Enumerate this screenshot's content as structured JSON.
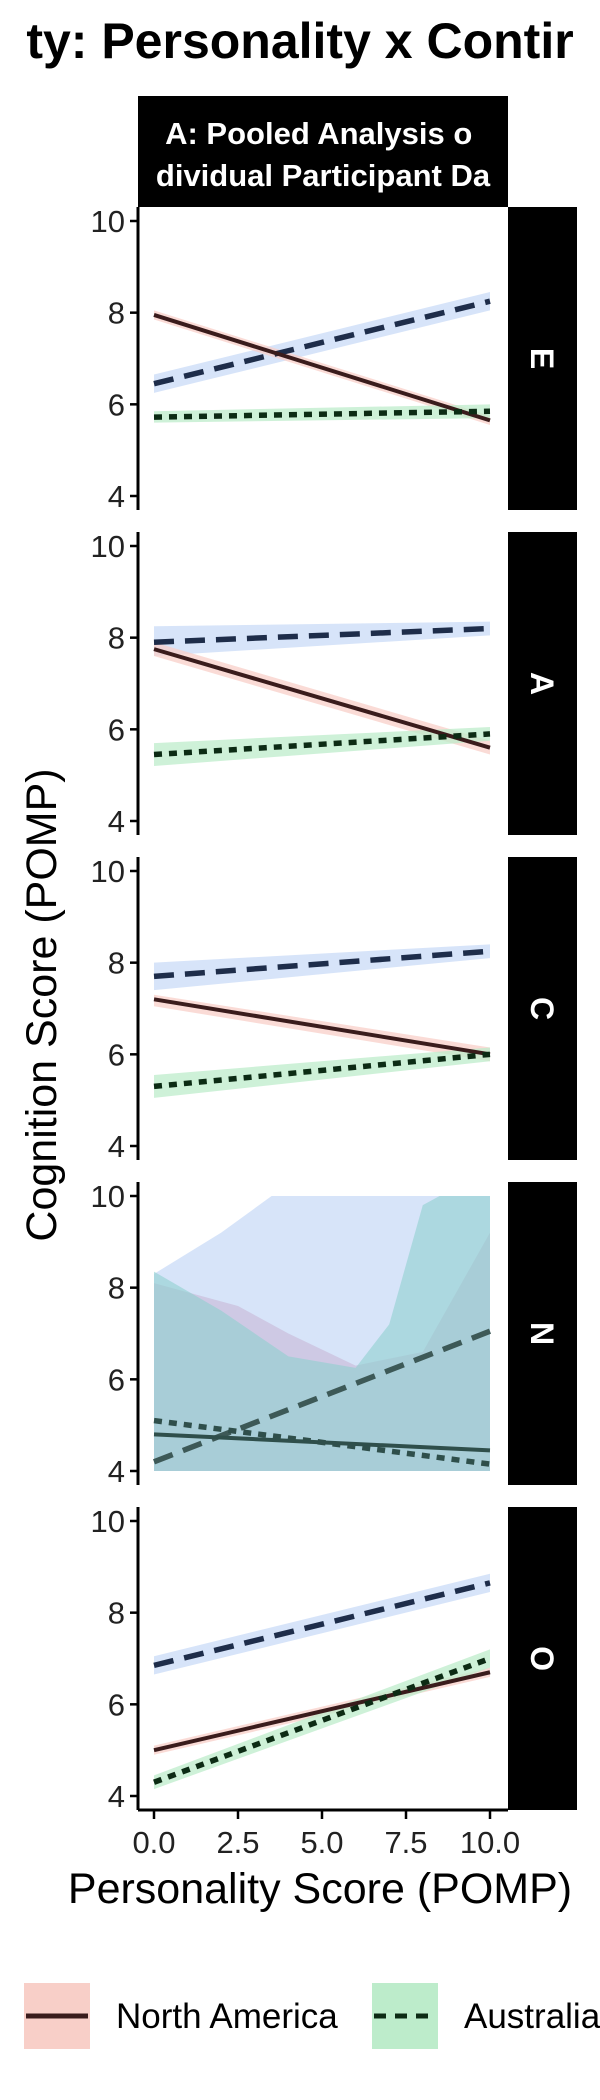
{
  "chart_data": {
    "type": "line",
    "title": "ty: Personality x Contir",
    "facet_column_label": "A: Pooled Analysis o\ndividual Participant Da",
    "xlabel": "Personality Score (POMP)",
    "ylabel": "Cognition Score (POMP)",
    "xlim": [
      0,
      10
    ],
    "ylim": [
      4,
      10
    ],
    "x_ticks": [
      0,
      2.5,
      5,
      7.5,
      10
    ],
    "x_tick_labels": [
      "0.0",
      "2.5",
      "5.0",
      "7.5",
      "10.0"
    ],
    "y_ticks": [
      4,
      6,
      8,
      10
    ],
    "y_tick_labels": [
      "4",
      "6",
      "8",
      "10"
    ],
    "grid": false,
    "legend_position": "bottom",
    "legend": [
      {
        "label": "North America",
        "line": "solid",
        "line_color": "#3a1c1c",
        "fill": "#f8cfc8"
      },
      {
        "label": "Australia",
        "line": "dotted",
        "line_color": "#0c2b14",
        "fill": "#bdeccb"
      }
    ],
    "panels": [
      {
        "label": "E",
        "series": [
          {
            "key": "north_america",
            "values": [
              [
                0,
                7.95
              ],
              [
                10,
                5.65
              ]
            ],
            "band": [
              [
                0,
                7.85,
                8.05
              ],
              [
                10,
                5.55,
                5.75
              ]
            ]
          },
          {
            "key": "dashed_blue",
            "values": [
              [
                0,
                6.45
              ],
              [
                10,
                8.25
              ]
            ],
            "band": [
              [
                0,
                6.25,
                6.65
              ],
              [
                10,
                8.05,
                8.45
              ]
            ]
          },
          {
            "key": "australia",
            "values": [
              [
                0,
                5.72
              ],
              [
                10,
                5.85
              ]
            ],
            "band": [
              [
                0,
                5.6,
                5.85
              ],
              [
                10,
                5.7,
                6.0
              ]
            ]
          }
        ]
      },
      {
        "label": "A",
        "series": [
          {
            "key": "north_america",
            "values": [
              [
                0,
                7.75
              ],
              [
                10,
                5.6
              ]
            ],
            "band": [
              [
                0,
                7.6,
                7.9
              ],
              [
                10,
                5.45,
                5.75
              ]
            ]
          },
          {
            "key": "dashed_blue",
            "values": [
              [
                0,
                7.9
              ],
              [
                10,
                8.2
              ]
            ],
            "band": [
              [
                0,
                7.6,
                8.25
              ],
              [
                10,
                8.05,
                8.35
              ]
            ]
          },
          {
            "key": "australia",
            "values": [
              [
                0,
                5.45
              ],
              [
                10,
                5.9
              ]
            ],
            "band": [
              [
                0,
                5.2,
                5.7
              ],
              [
                10,
                5.75,
                6.05
              ]
            ]
          }
        ]
      },
      {
        "label": "C",
        "series": [
          {
            "key": "north_america",
            "values": [
              [
                0,
                7.2
              ],
              [
                10,
                6.0
              ]
            ],
            "band": [
              [
                0,
                7.05,
                7.3
              ],
              [
                10,
                5.85,
                6.15
              ]
            ]
          },
          {
            "key": "dashed_blue",
            "values": [
              [
                0,
                7.7
              ],
              [
                10,
                8.25
              ]
            ],
            "band": [
              [
                0,
                7.4,
                8.0
              ],
              [
                10,
                8.1,
                8.4
              ]
            ]
          },
          {
            "key": "australia",
            "values": [
              [
                0,
                5.3
              ],
              [
                10,
                6.0
              ]
            ],
            "band": [
              [
                0,
                5.05,
                5.55
              ],
              [
                10,
                5.85,
                6.15
              ]
            ]
          }
        ]
      },
      {
        "label": "N",
        "series": [
          {
            "key": "north_america",
            "values": [
              [
                0,
                4.8
              ],
              [
                10,
                4.45
              ]
            ],
            "band": [
              [
                0,
                4.0,
                8.1
              ],
              [
                2.5,
                4.0,
                7.6
              ],
              [
                4.0,
                4.0,
                7.0
              ],
              [
                6.0,
                4.0,
                6.3
              ],
              [
                8.0,
                4.0,
                6.6
              ],
              [
                10,
                4.0,
                9.2
              ]
            ]
          },
          {
            "key": "dashed_blue",
            "values": [
              [
                0,
                4.2
              ],
              [
                10,
                7.05
              ]
            ],
            "band": [
              [
                0,
                4.0,
                8.3
              ],
              [
                2.0,
                4.0,
                9.2
              ],
              [
                3.5,
                4.0,
                10.0
              ],
              [
                10,
                4.0,
                10.0
              ]
            ]
          },
          {
            "key": "australia",
            "values": [
              [
                0,
                5.1
              ],
              [
                10,
                4.15
              ]
            ],
            "band": [
              [
                0,
                4.0,
                8.35
              ],
              [
                2.0,
                4.0,
                7.5
              ],
              [
                4.0,
                4.0,
                6.5
              ],
              [
                6.0,
                4.0,
                6.25
              ],
              [
                7.0,
                4.0,
                7.2
              ],
              [
                8.0,
                4.0,
                9.8
              ],
              [
                8.5,
                4.0,
                10.0
              ],
              [
                10,
                4.0,
                10.0
              ]
            ]
          }
        ]
      },
      {
        "label": "O",
        "series": [
          {
            "key": "north_america",
            "values": [
              [
                0,
                5.0
              ],
              [
                10,
                6.7
              ]
            ],
            "band": [
              [
                0,
                4.9,
                5.1
              ],
              [
                10,
                6.6,
                6.8
              ]
            ]
          },
          {
            "key": "dashed_blue",
            "values": [
              [
                0,
                6.85
              ],
              [
                10,
                8.65
              ]
            ],
            "band": [
              [
                0,
                6.65,
                7.05
              ],
              [
                10,
                8.45,
                8.85
              ]
            ]
          },
          {
            "key": "australia",
            "values": [
              [
                0,
                4.3
              ],
              [
                10,
                7.0
              ]
            ],
            "band": [
              [
                0,
                4.15,
                4.45
              ],
              [
                10,
                6.8,
                7.2
              ]
            ]
          }
        ]
      }
    ],
    "colors": {
      "north_america_line": "#3a1c1c",
      "north_america_fill": "#f8cfc8",
      "blue_line": "#1e2d4a",
      "blue_fill": "#c9dbf7",
      "australia_line": "#0c2b14",
      "australia_fill": "#bdeccb",
      "strip_bg": "#000000",
      "strip_text": "#ffffff"
    }
  }
}
